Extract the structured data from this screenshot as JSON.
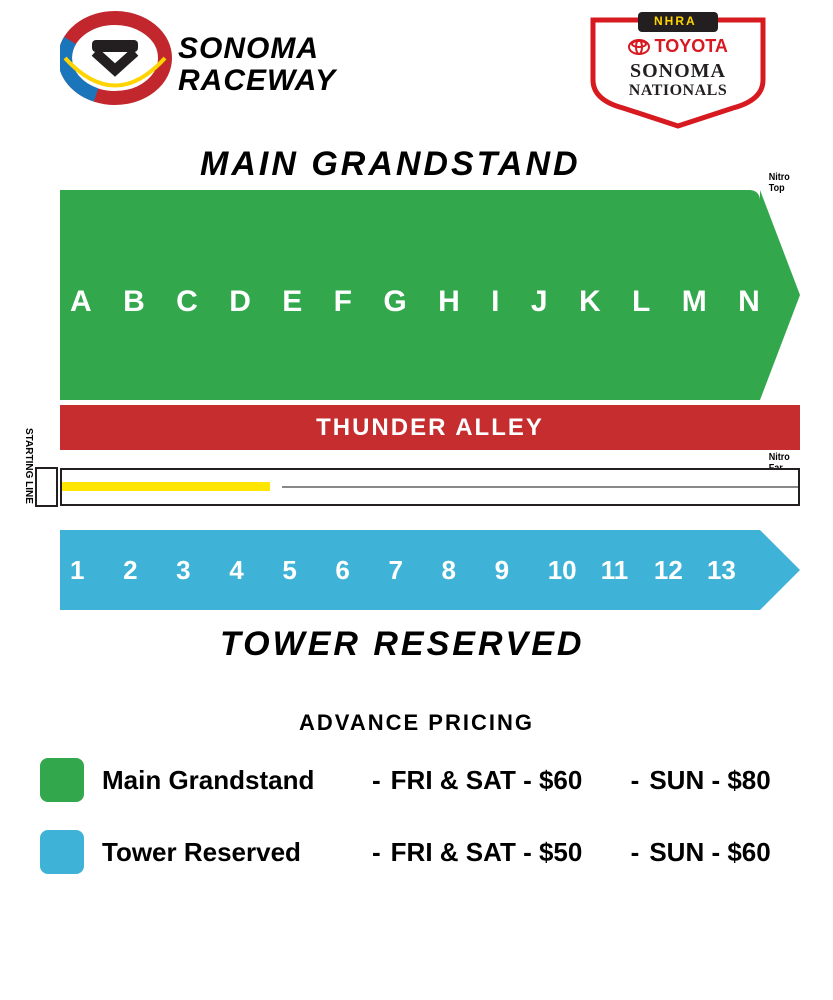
{
  "colors": {
    "green": "#33a74c",
    "blue": "#3eb3d7",
    "red": "#c52d2f",
    "yellow": "#ffe500",
    "black": "#231f20",
    "toyota_red": "#d71920",
    "sonoma_logo_red": "#c1272d",
    "sonoma_logo_blue": "#1b75bb"
  },
  "header": {
    "left_logo": {
      "line1": "SONOMA",
      "line2": "RACEWAY"
    },
    "right_logo": {
      "nhra": "NHRA",
      "toyota": "TOYOTA",
      "line1": "SONOMA",
      "line2": "NATIONALS"
    }
  },
  "map": {
    "grandstand_title": "MAIN GRANDSTAND",
    "grandstand_letters": [
      "A",
      "B",
      "C",
      "D",
      "E",
      "F",
      "G",
      "H",
      "I",
      "J",
      "K",
      "L",
      "M",
      "N"
    ],
    "thunder_label": "THUNDER ALLEY",
    "nitro_top_label": "Nitro Top",
    "nitro_far_label": "Nitro Far",
    "start_label": "STARTING LINE",
    "tower_numbers": [
      "1",
      "2",
      "3",
      "4",
      "5",
      "6",
      "7",
      "8",
      "9",
      "10",
      "11",
      "12",
      "13"
    ],
    "tower_title": "TOWER RESERVED"
  },
  "pricing": {
    "title": "ADVANCE PRICING",
    "rows": [
      {
        "swatch_color": "#33a74c",
        "label": "Main Grandstand",
        "price1": "FRI & SAT - $60",
        "price2": "SUN - $80"
      },
      {
        "swatch_color": "#3eb3d7",
        "label": "Tower Reserved",
        "price1": "FRI & SAT - $50",
        "price2": "SUN - $60"
      }
    ]
  }
}
